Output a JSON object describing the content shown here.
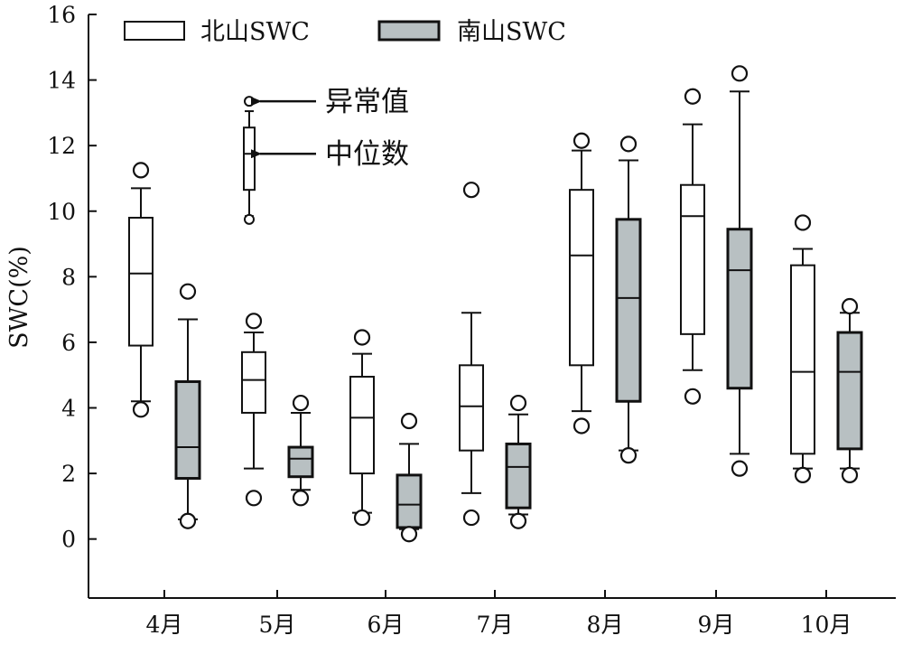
{
  "chart_data": {
    "type": "boxplot",
    "categories": [
      "4月",
      "5月",
      "6月",
      "7月",
      "8月",
      "9月",
      "10月"
    ],
    "ylabel": "SWC(%)",
    "xlabel": "",
    "ylim": [
      -1.8,
      16
    ],
    "yticks": [
      0,
      2,
      4,
      6,
      8,
      10,
      12,
      14,
      16
    ],
    "grid": false,
    "legend_position": "top-left",
    "series": [
      {
        "name": "北山SWC",
        "color": "#ffffff",
        "boxes": [
          {
            "whisker_low": 4.2,
            "q1": 5.9,
            "median": 8.1,
            "q3": 9.8,
            "whisker_high": 10.7,
            "outliers": [
              3.95,
              11.25
            ]
          },
          {
            "whisker_low": 2.15,
            "q1": 3.85,
            "median": 4.85,
            "q3": 5.7,
            "whisker_high": 6.3,
            "outliers": [
              1.25,
              6.65
            ]
          },
          {
            "whisker_low": 0.8,
            "q1": 2.0,
            "median": 3.7,
            "q3": 4.95,
            "whisker_high": 5.65,
            "outliers": [
              0.65,
              6.15
            ]
          },
          {
            "whisker_low": 1.4,
            "q1": 2.7,
            "median": 4.05,
            "q3": 5.3,
            "whisker_high": 6.9,
            "outliers": [
              0.65,
              10.65
            ]
          },
          {
            "whisker_low": 3.9,
            "q1": 5.3,
            "median": 8.65,
            "q3": 10.65,
            "whisker_high": 11.85,
            "outliers": [
              3.45,
              12.15
            ]
          },
          {
            "whisker_low": 5.15,
            "q1": 6.25,
            "median": 9.85,
            "q3": 10.8,
            "whisker_high": 12.65,
            "outliers": [
              4.35,
              13.5
            ]
          },
          {
            "whisker_low": 2.15,
            "q1": 2.6,
            "median": 5.1,
            "q3": 8.35,
            "whisker_high": 8.85,
            "outliers": [
              1.95,
              9.65
            ]
          }
        ]
      },
      {
        "name": "南山SWC",
        "color": "#b8c0c2",
        "boxes": [
          {
            "whisker_low": 0.6,
            "q1": 1.85,
            "median": 2.8,
            "q3": 4.8,
            "whisker_high": 6.7,
            "outliers": [
              0.55,
              7.55
            ]
          },
          {
            "whisker_low": 1.5,
            "q1": 1.9,
            "median": 2.45,
            "q3": 2.8,
            "whisker_high": 3.85,
            "outliers": [
              1.25,
              4.15
            ]
          },
          {
            "whisker_low": 0.3,
            "q1": 0.35,
            "median": 1.05,
            "q3": 1.95,
            "whisker_high": 2.9,
            "outliers": [
              0.15,
              3.6
            ]
          },
          {
            "whisker_low": 0.75,
            "q1": 0.95,
            "median": 2.2,
            "q3": 2.9,
            "whisker_high": 3.8,
            "outliers": [
              0.55,
              4.15
            ]
          },
          {
            "whisker_low": 2.7,
            "q1": 4.2,
            "median": 7.35,
            "q3": 9.75,
            "whisker_high": 11.55,
            "outliers": [
              2.55,
              12.05
            ]
          },
          {
            "whisker_low": 2.6,
            "q1": 4.6,
            "median": 8.2,
            "q3": 9.45,
            "whisker_high": 13.65,
            "outliers": [
              2.15,
              14.2
            ]
          },
          {
            "whisker_low": 2.15,
            "q1": 2.75,
            "median": 5.1,
            "q3": 6.3,
            "whisker_high": 6.9,
            "outliers": [
              1.95,
              7.1
            ]
          }
        ]
      }
    ],
    "annotations": [
      {
        "text": "异常值",
        "target_category": "5月",
        "target_series": "北山SWC",
        "target_value": 13.35
      },
      {
        "text": "中位数",
        "target_category": "5月",
        "target_series": "北山SWC",
        "target_value": 11.75
      }
    ],
    "inset_box": {
      "category": "5月",
      "series": "北山SWC",
      "whisker_low": 9.85,
      "q1": 10.65,
      "median": 11.75,
      "q3": 12.55,
      "whisker_high": 13.05,
      "outliers": [
        9.75,
        13.35
      ]
    }
  }
}
